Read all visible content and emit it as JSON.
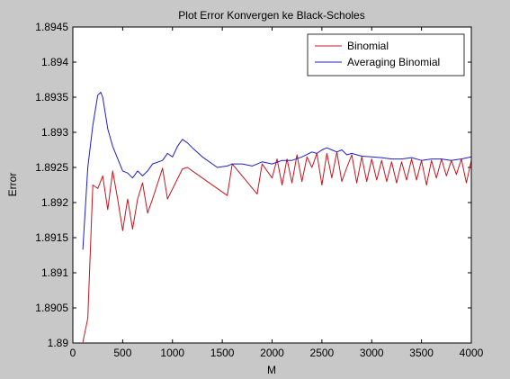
{
  "chart_data": {
    "type": "line",
    "title": "Plot Error Konvergen ke Black-Scholes",
    "xlabel": "M",
    "ylabel": "Error",
    "xlim": [
      0,
      4000
    ],
    "ylim": [
      1.89,
      1.8945
    ],
    "x_ticks": [
      0,
      500,
      1000,
      1500,
      2000,
      2500,
      3000,
      3500,
      4000
    ],
    "x_tick_labels": [
      "0",
      "500",
      "1000",
      "1500",
      "2000",
      "2500",
      "3000",
      "3500",
      "4000"
    ],
    "y_ticks": [
      1.89,
      1.8905,
      1.891,
      1.8915,
      1.892,
      1.8925,
      1.893,
      1.8935,
      1.894,
      1.8945
    ],
    "y_tick_labels": [
      "1.89",
      "1.8905",
      "1.891",
      "1.8915",
      "1.892",
      "1.8925",
      "1.893",
      "1.8935",
      "1.894",
      "1.8945"
    ],
    "grid": false,
    "legend_position": "top-right",
    "series": [
      {
        "name": "Binomial",
        "color": "#c8141e",
        "x": [
          100,
          150,
          200,
          250,
          300,
          350,
          400,
          450,
          500,
          550,
          600,
          650,
          700,
          750,
          800,
          900,
          950,
          1100,
          1150,
          1250,
          1550,
          1600,
          1850,
          1900,
          2000,
          2050,
          2100,
          2150,
          2200,
          2250,
          2300,
          2350,
          2400,
          2450,
          2500,
          2550,
          2600,
          2650,
          2700,
          2750,
          2800,
          2850,
          2900,
          2950,
          3000,
          3050,
          3100,
          3150,
          3200,
          3250,
          3300,
          3350,
          3400,
          3450,
          3500,
          3550,
          3600,
          3650,
          3700,
          3750,
          3800,
          3850,
          3900,
          3950,
          4000
        ],
        "y": [
          1.89001,
          1.89035,
          1.89225,
          1.8922,
          1.89238,
          1.8919,
          1.89245,
          1.89205,
          1.8916,
          1.89205,
          1.89162,
          1.89205,
          1.89228,
          1.89185,
          1.89205,
          1.89249,
          1.89205,
          1.89248,
          1.8925,
          1.8924,
          1.8921,
          1.89255,
          1.89212,
          1.89255,
          1.89235,
          1.89262,
          1.89225,
          1.89262,
          1.89228,
          1.89268,
          1.8923,
          1.89265,
          1.8925,
          1.8927,
          1.89225,
          1.8927,
          1.89235,
          1.89272,
          1.8923,
          1.8925,
          1.89268,
          1.89228,
          1.89265,
          1.8923,
          1.89262,
          1.89232,
          1.8926,
          1.8923,
          1.89258,
          1.89228,
          1.89258,
          1.89232,
          1.89262,
          1.89232,
          1.8926,
          1.89225,
          1.8926,
          1.89235,
          1.89262,
          1.89238,
          1.8926,
          1.8924,
          1.89262,
          1.89228,
          1.8926
        ]
      },
      {
        "name": "Averaging Binomial",
        "color": "#1e1ec8",
        "x": [
          100,
          150,
          200,
          250,
          280,
          300,
          350,
          400,
          500,
          550,
          600,
          650,
          700,
          750,
          800,
          900,
          950,
          1000,
          1050,
          1100,
          1150,
          1200,
          1300,
          1450,
          1550,
          1600,
          1700,
          1800,
          1900,
          2000,
          2100,
          2200,
          2300,
          2400,
          2450,
          2500,
          2550,
          2600,
          2650,
          2700,
          2750,
          2800,
          2900,
          3000,
          3100,
          3200,
          3300,
          3400,
          3500,
          3600,
          3700,
          3800,
          3900,
          4000
        ],
        "y": [
          1.89133,
          1.8925,
          1.8931,
          1.89353,
          1.89357,
          1.8935,
          1.89305,
          1.8928,
          1.89245,
          1.89242,
          1.89235,
          1.89245,
          1.89238,
          1.89245,
          1.89255,
          1.8926,
          1.8927,
          1.89265,
          1.8928,
          1.8929,
          1.89285,
          1.89278,
          1.89265,
          1.8925,
          1.89252,
          1.89255,
          1.89255,
          1.89252,
          1.89258,
          1.89255,
          1.8926,
          1.8926,
          1.89265,
          1.89272,
          1.8927,
          1.89275,
          1.89278,
          1.89275,
          1.89272,
          1.89275,
          1.89268,
          1.8927,
          1.89266,
          1.89265,
          1.89264,
          1.89262,
          1.89262,
          1.89264,
          1.8926,
          1.89262,
          1.89262,
          1.8926,
          1.89262,
          1.89265
        ]
      }
    ]
  }
}
